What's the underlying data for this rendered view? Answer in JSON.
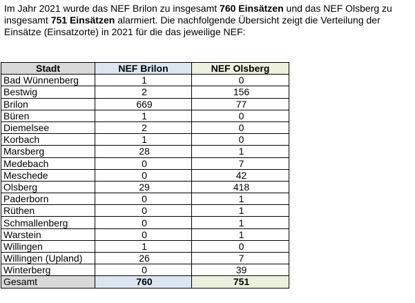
{
  "intro": {
    "p1": "Im Jahr 2021 wurde das NEF Brilon zu insgesamt ",
    "b1": "760 Einsätzen",
    "p2": " und das NEF Olsberg zu insgesamt ",
    "b2": "751 Einsätzen",
    "p3": " alarmiert. Die nachfolgende Übersicht zeigt die Verteilung der Einsätze (Einsatzorte) in 2021 für die das jeweilige NEF:"
  },
  "table": {
    "headers": [
      "Stadt",
      "NEF Brilon",
      "NEF Olsberg"
    ],
    "rows": [
      [
        "Bad Wünnenberg",
        "1",
        "0"
      ],
      [
        "Bestwig",
        "2",
        "156"
      ],
      [
        "Brilon",
        "669",
        "77"
      ],
      [
        "Büren",
        "1",
        "0"
      ],
      [
        "Diemelsee",
        "2",
        "0"
      ],
      [
        "Korbach",
        "1",
        "0"
      ],
      [
        "Marsberg",
        "28",
        "1"
      ],
      [
        "Medebach",
        "0",
        "7"
      ],
      [
        "Meschede",
        "0",
        "42"
      ],
      [
        "Olsberg",
        "29",
        "418"
      ],
      [
        "Paderborn",
        "0",
        "1"
      ],
      [
        "Rüthen",
        "0",
        "1"
      ],
      [
        "Schmallenberg",
        "0",
        "1"
      ],
      [
        "Warstein",
        "0",
        "1"
      ],
      [
        "Willingen",
        "1",
        "0"
      ],
      [
        "Willingen (Upland)",
        "26",
        "7"
      ],
      [
        "Winterberg",
        "0",
        "39"
      ]
    ],
    "total": [
      "Gesamt",
      "760",
      "751"
    ]
  }
}
